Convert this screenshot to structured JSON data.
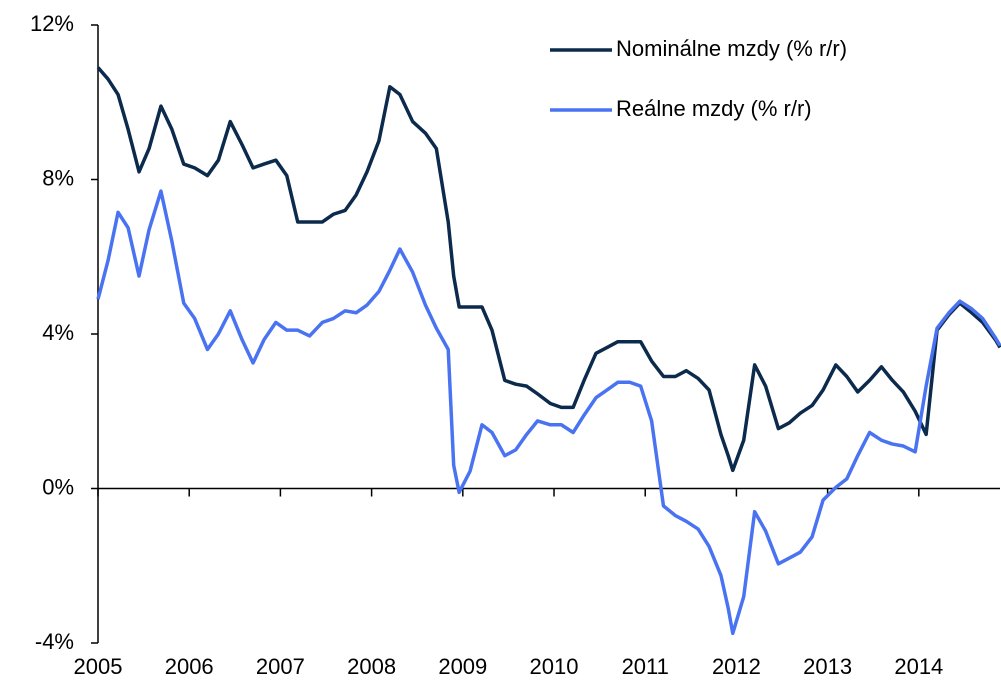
{
  "chart_data": {
    "type": "line",
    "x": [
      2005.0,
      2005.11,
      2005.22,
      2005.33,
      2005.45,
      2005.56,
      2005.69,
      2005.81,
      2005.94,
      2006.06,
      2006.2,
      2006.32,
      2006.45,
      2006.58,
      2006.7,
      2006.82,
      2006.95,
      2007.07,
      2007.19,
      2007.32,
      2007.46,
      2007.58,
      2007.71,
      2007.83,
      2007.95,
      2008.08,
      2008.2,
      2008.31,
      2008.45,
      2008.59,
      2008.71,
      2008.84,
      2008.9,
      2008.96,
      2009.08,
      2009.21,
      2009.32,
      2009.46,
      2009.58,
      2009.7,
      2009.82,
      2009.96,
      2010.08,
      2010.21,
      2010.33,
      2010.46,
      2010.58,
      2010.7,
      2010.83,
      2010.95,
      2011.07,
      2011.2,
      2011.33,
      2011.45,
      2011.58,
      2011.7,
      2011.83,
      2011.91,
      2011.96,
      2012.08,
      2012.2,
      2012.32,
      2012.46,
      2012.58,
      2012.7,
      2012.83,
      2012.95,
      2013.09,
      2013.21,
      2013.33,
      2013.46,
      2013.59,
      2013.71,
      2013.83,
      2013.96,
      2014.08,
      2014.2,
      2014.33,
      2014.45,
      2014.58,
      2014.7,
      2014.84,
      2014.89
    ],
    "series": [
      {
        "name": "Nominálne mzdy (% r/r)",
        "color": "#0c2a4c",
        "values": [
          10.9,
          10.6,
          10.2,
          9.3,
          8.2,
          8.8,
          9.9,
          9.3,
          8.4,
          8.3,
          8.1,
          8.5,
          9.5,
          8.9,
          8.3,
          8.4,
          8.5,
          8.1,
          6.9,
          6.9,
          6.9,
          7.1,
          7.2,
          7.6,
          8.2,
          9.0,
          10.4,
          10.2,
          9.5,
          9.2,
          8.8,
          6.9,
          5.5,
          4.7,
          4.7,
          4.7,
          4.1,
          2.8,
          2.7,
          2.65,
          2.45,
          2.2,
          2.1,
          2.1,
          2.8,
          3.5,
          3.65,
          3.8,
          3.8,
          3.8,
          3.3,
          2.9,
          2.9,
          3.05,
          2.85,
          2.55,
          1.4,
          0.85,
          0.47,
          1.25,
          3.2,
          2.65,
          1.55,
          1.7,
          1.95,
          2.15,
          2.55,
          3.2,
          2.9,
          2.5,
          2.8,
          3.15,
          2.8,
          2.5,
          2.0,
          1.4,
          4.1,
          4.5,
          4.8,
          4.55,
          4.3,
          3.85,
          3.65
        ]
      },
      {
        "name": "Reálne mzdy (% r/r)",
        "color": "#4a73f2",
        "values": [
          4.9,
          5.9,
          7.15,
          6.75,
          5.5,
          6.7,
          7.7,
          6.4,
          4.8,
          4.4,
          3.6,
          4.0,
          4.6,
          3.85,
          3.25,
          3.85,
          4.3,
          4.1,
          4.1,
          3.95,
          4.3,
          4.4,
          4.6,
          4.55,
          4.75,
          5.1,
          5.65,
          6.2,
          5.6,
          4.75,
          4.15,
          3.6,
          0.6,
          -0.1,
          0.45,
          1.65,
          1.45,
          0.85,
          1.0,
          1.4,
          1.75,
          1.65,
          1.65,
          1.45,
          1.9,
          2.35,
          2.55,
          2.75,
          2.75,
          2.65,
          1.75,
          -0.45,
          -0.7,
          -0.85,
          -1.05,
          -1.5,
          -2.25,
          -3.1,
          -3.75,
          -2.8,
          -0.6,
          -1.1,
          -1.95,
          -1.8,
          -1.65,
          -1.25,
          -0.3,
          0.03,
          0.25,
          0.85,
          1.45,
          1.25,
          1.15,
          1.1,
          0.95,
          2.65,
          4.15,
          4.55,
          4.85,
          4.65,
          4.4,
          3.9,
          3.7
        ]
      }
    ],
    "xlim": [
      2005,
      2014.89
    ],
    "xticks": [
      2005,
      2006,
      2007,
      2008,
      2009,
      2010,
      2011,
      2012,
      2013,
      2014
    ],
    "ylim": [
      -4,
      12
    ],
    "yticks": [
      {
        "value": -4,
        "label": "-4%"
      },
      {
        "value": 0,
        "label": "0%"
      },
      {
        "value": 4,
        "label": "4%"
      },
      {
        "value": 8,
        "label": "8%"
      },
      {
        "value": 12,
        "label": "12%"
      }
    ],
    "legend": "top-right"
  }
}
